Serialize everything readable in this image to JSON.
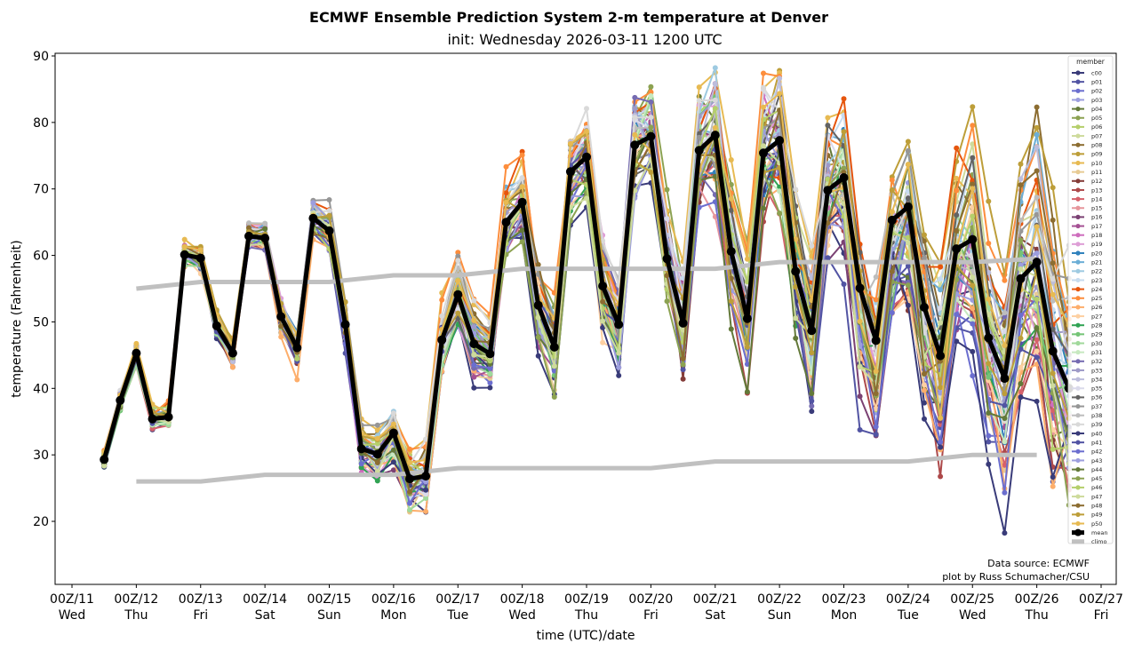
{
  "chart_data": {
    "type": "line",
    "title": "ECMWF Ensemble Prediction System 2-m temperature at Denver",
    "subtitle": "init: Wednesday 2026-03-11 1200 UTC",
    "xlabel": "time (UTC)/date",
    "ylabel": "temperature (Fahrenheit)",
    "xlim_days": [
      -0.6,
      16.2
    ],
    "ylim": [
      11,
      90.5
    ],
    "yticks": [
      20,
      30,
      40,
      50,
      60,
      70,
      80,
      90
    ],
    "xticks": [
      {
        "day": 0,
        "label": "00Z/11",
        "weekday": "Wed"
      },
      {
        "day": 1,
        "label": "00Z/12",
        "weekday": "Thu"
      },
      {
        "day": 2,
        "label": "00Z/13",
        "weekday": "Fri"
      },
      {
        "day": 3,
        "label": "00Z/14",
        "weekday": "Sat"
      },
      {
        "day": 4,
        "label": "00Z/15",
        "weekday": "Sun"
      },
      {
        "day": 5,
        "label": "00Z/16",
        "weekday": "Mon"
      },
      {
        "day": 6,
        "label": "00Z/17",
        "weekday": "Tue"
      },
      {
        "day": 7,
        "label": "00Z/18",
        "weekday": "Wed"
      },
      {
        "day": 8,
        "label": "00Z/19",
        "weekday": "Thu"
      },
      {
        "day": 9,
        "label": "00Z/20",
        "weekday": "Fri"
      },
      {
        "day": 10,
        "label": "00Z/21",
        "weekday": "Sat"
      },
      {
        "day": 11,
        "label": "00Z/22",
        "weekday": "Sun"
      },
      {
        "day": 12,
        "label": "00Z/23",
        "weekday": "Mon"
      },
      {
        "day": 13,
        "label": "00Z/24",
        "weekday": "Tue"
      },
      {
        "day": 14,
        "label": "00Z/25",
        "weekday": "Wed"
      },
      {
        "day": 15,
        "label": "00Z/26",
        "weekday": "Thu"
      },
      {
        "day": 16,
        "label": "00Z/27",
        "weekday": "Fri"
      }
    ],
    "time_step_hours": 6,
    "start_day": 0.5,
    "grid": false,
    "legend": {
      "title": "member",
      "position": "right"
    },
    "mean": {
      "name": "mean",
      "color": "#000000",
      "values": [
        29.3,
        38.2,
        45.3,
        35.4,
        35.7,
        60.1,
        59.6,
        49.4,
        45.3,
        62.9,
        62.6,
        50.8,
        46.1,
        65.6,
        63.7,
        49.6,
        30.9,
        30.1,
        33.3,
        26.4,
        26.8,
        47.3,
        54.1,
        46.7,
        45.2,
        65.0,
        68.0,
        52.5,
        46.2,
        72.6,
        74.8,
        55.4,
        49.6,
        76.6,
        77.9,
        59.5,
        49.8,
        75.8,
        78.1,
        60.6,
        50.5,
        75.4,
        77.3,
        57.6,
        48.7,
        69.8,
        71.7,
        55.1,
        47.2,
        65.3,
        67.3,
        52.2,
        44.9,
        61.0,
        62.4,
        47.6,
        41.5,
        56.5,
        59.0,
        45.6,
        40.0
      ]
    },
    "climo": {
      "name": "climo",
      "color": "#c0c0c0",
      "high": {
        "days": [
          1,
          2,
          3,
          4,
          5,
          6,
          7,
          8,
          9,
          10,
          11,
          12,
          13,
          14,
          15
        ],
        "values": [
          55,
          56,
          56,
          56,
          57,
          57,
          58,
          58,
          58,
          58,
          59,
          59,
          59,
          59,
          59.5
        ]
      },
      "low": {
        "days": [
          1,
          2,
          3,
          4,
          5,
          6,
          7,
          8,
          9,
          10,
          11,
          12,
          13,
          14,
          15
        ],
        "values": [
          26,
          26,
          27,
          27,
          27,
          28,
          28,
          28,
          28,
          29,
          29,
          29,
          29,
          30,
          30
        ]
      }
    },
    "member_spread_note": "members plotted as ensemble plume around mean; spread grows with lead time",
    "members": [
      {
        "name": "c00",
        "color": "#393b79"
      },
      {
        "name": "p01",
        "color": "#5254a3"
      },
      {
        "name": "p02",
        "color": "#6b6ecf"
      },
      {
        "name": "p03",
        "color": "#9c9ede"
      },
      {
        "name": "p04",
        "color": "#637939"
      },
      {
        "name": "p05",
        "color": "#8ca252"
      },
      {
        "name": "p06",
        "color": "#b5cf6b"
      },
      {
        "name": "p07",
        "color": "#cedb9c"
      },
      {
        "name": "p08",
        "color": "#8c6d31"
      },
      {
        "name": "p09",
        "color": "#bd9e39"
      },
      {
        "name": "p10",
        "color": "#e7ba52"
      },
      {
        "name": "p11",
        "color": "#e7cb94"
      },
      {
        "name": "p12",
        "color": "#843c39"
      },
      {
        "name": "p13",
        "color": "#ad494a"
      },
      {
        "name": "p14",
        "color": "#d6616b"
      },
      {
        "name": "p15",
        "color": "#e7969c"
      },
      {
        "name": "p16",
        "color": "#7b4173"
      },
      {
        "name": "p17",
        "color": "#a55194"
      },
      {
        "name": "p18",
        "color": "#ce6dbd"
      },
      {
        "name": "p19",
        "color": "#de9ed6"
      },
      {
        "name": "p20",
        "color": "#3182bd"
      },
      {
        "name": "p21",
        "color": "#6baed6"
      },
      {
        "name": "p22",
        "color": "#9ecae1"
      },
      {
        "name": "p23",
        "color": "#c6dbef"
      },
      {
        "name": "p24",
        "color": "#e6550d"
      },
      {
        "name": "p25",
        "color": "#fd8d3c"
      },
      {
        "name": "p26",
        "color": "#fdae6b"
      },
      {
        "name": "p27",
        "color": "#fdd0a2"
      },
      {
        "name": "p28",
        "color": "#31a354"
      },
      {
        "name": "p29",
        "color": "#74c476"
      },
      {
        "name": "p30",
        "color": "#a1d99b"
      },
      {
        "name": "p31",
        "color": "#c7e9c0"
      },
      {
        "name": "p32",
        "color": "#756bb1"
      },
      {
        "name": "p33",
        "color": "#9e9ac8"
      },
      {
        "name": "p34",
        "color": "#bcbddc"
      },
      {
        "name": "p35",
        "color": "#dadaeb"
      },
      {
        "name": "p36",
        "color": "#636363"
      },
      {
        "name": "p37",
        "color": "#969696"
      },
      {
        "name": "p38",
        "color": "#bdbdbd"
      },
      {
        "name": "p39",
        "color": "#d9d9d9"
      },
      {
        "name": "p40",
        "color": "#393b79"
      },
      {
        "name": "p41",
        "color": "#5254a3"
      },
      {
        "name": "p42",
        "color": "#6b6ecf"
      },
      {
        "name": "p43",
        "color": "#9c9ede"
      },
      {
        "name": "p44",
        "color": "#637939"
      },
      {
        "name": "p45",
        "color": "#8ca252"
      },
      {
        "name": "p46",
        "color": "#b5cf6b"
      },
      {
        "name": "p47",
        "color": "#cedb9c"
      },
      {
        "name": "p48",
        "color": "#8c6d31"
      },
      {
        "name": "p49",
        "color": "#bd9e39"
      },
      {
        "name": "p50",
        "color": "#e7ba52"
      }
    ],
    "annotations": [
      "Data source: ECMWF",
      "plot by Russ Schumacher/CSU"
    ]
  }
}
